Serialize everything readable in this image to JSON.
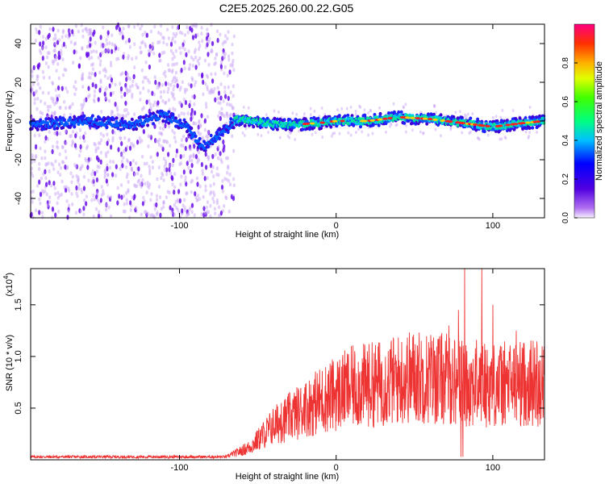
{
  "title": "C2E5.2025.260.00.22.G05",
  "colors": {
    "snr_line": "#ee3333",
    "spec_dot": "#7a1fe8",
    "axis": "#000000",
    "background": "#ffffff"
  },
  "chart_data": [
    {
      "type": "heatmap",
      "title": "C2E5.2025.260.00.22.G05",
      "xlabel": "Height of straight line (km)",
      "ylabel": "Frequency (Hz)",
      "xlim": [
        -195,
        133
      ],
      "ylim": [
        -50,
        50
      ],
      "xticks": [
        -100,
        0,
        100
      ],
      "yticks": [
        -40,
        -20,
        0,
        20,
        40
      ],
      "colorbar": {
        "label": "Normalized spectral amplitude",
        "range": [
          0.0,
          1.0
        ],
        "ticks": [
          "0.0",
          "0.2",
          "0.4",
          "0.6",
          "0.8"
        ],
        "tick_values": [
          0.0,
          0.2,
          0.4,
          0.6,
          0.8
        ]
      },
      "noise_region_x": [
        -195,
        -65
      ],
      "ridge": [
        [
          -195,
          -2
        ],
        [
          -160,
          0
        ],
        [
          -130,
          -2
        ],
        [
          -110,
          3
        ],
        [
          -95,
          -3
        ],
        [
          -85,
          -14
        ],
        [
          -63,
          1
        ],
        [
          -45,
          -1
        ],
        [
          -30,
          -2
        ],
        [
          -10,
          -1
        ],
        [
          0,
          0
        ],
        [
          20,
          0
        ],
        [
          40,
          2
        ],
        [
          60,
          1
        ],
        [
          80,
          -1
        ],
        [
          100,
          -3
        ],
        [
          120,
          -1
        ],
        [
          133,
          0
        ]
      ]
    },
    {
      "type": "line",
      "xlabel": "Height of straight line (km)",
      "ylabel": "SNR (10 * v/v)",
      "y_multiplier": "(x10",
      "y_exponent": "4",
      "xlim": [
        -195,
        133
      ],
      "ylim": [
        0,
        18500
      ],
      "xticks": [
        -100,
        0,
        100
      ],
      "yticks": [
        5000,
        10000,
        15000
      ],
      "ytick_labels": [
        "0.5",
        "1.0",
        "1.5"
      ],
      "envelope": [
        [
          -195,
          300
        ],
        [
          -150,
          300
        ],
        [
          -100,
          300
        ],
        [
          -70,
          300
        ],
        [
          -55,
          1500
        ],
        [
          -40,
          4000
        ],
        [
          -25,
          5500
        ],
        [
          -10,
          7000
        ],
        [
          10,
          8500
        ],
        [
          30,
          9000
        ],
        [
          50,
          9800
        ],
        [
          70,
          9500
        ],
        [
          80,
          9000
        ],
        [
          90,
          9000
        ],
        [
          100,
          8800
        ],
        [
          120,
          9000
        ],
        [
          133,
          9200
        ]
      ],
      "peaks": [
        [
          -43,
          3500
        ],
        [
          -35,
          5500
        ],
        [
          -20,
          7000
        ],
        [
          5,
          9200
        ],
        [
          20,
          10500
        ],
        [
          35,
          11200
        ],
        [
          52,
          11000
        ],
        [
          72,
          13000
        ],
        [
          78,
          14500
        ],
        [
          82,
          18500
        ],
        [
          93,
          18500
        ],
        [
          100,
          15000
        ],
        [
          115,
          12500
        ]
      ]
    }
  ]
}
